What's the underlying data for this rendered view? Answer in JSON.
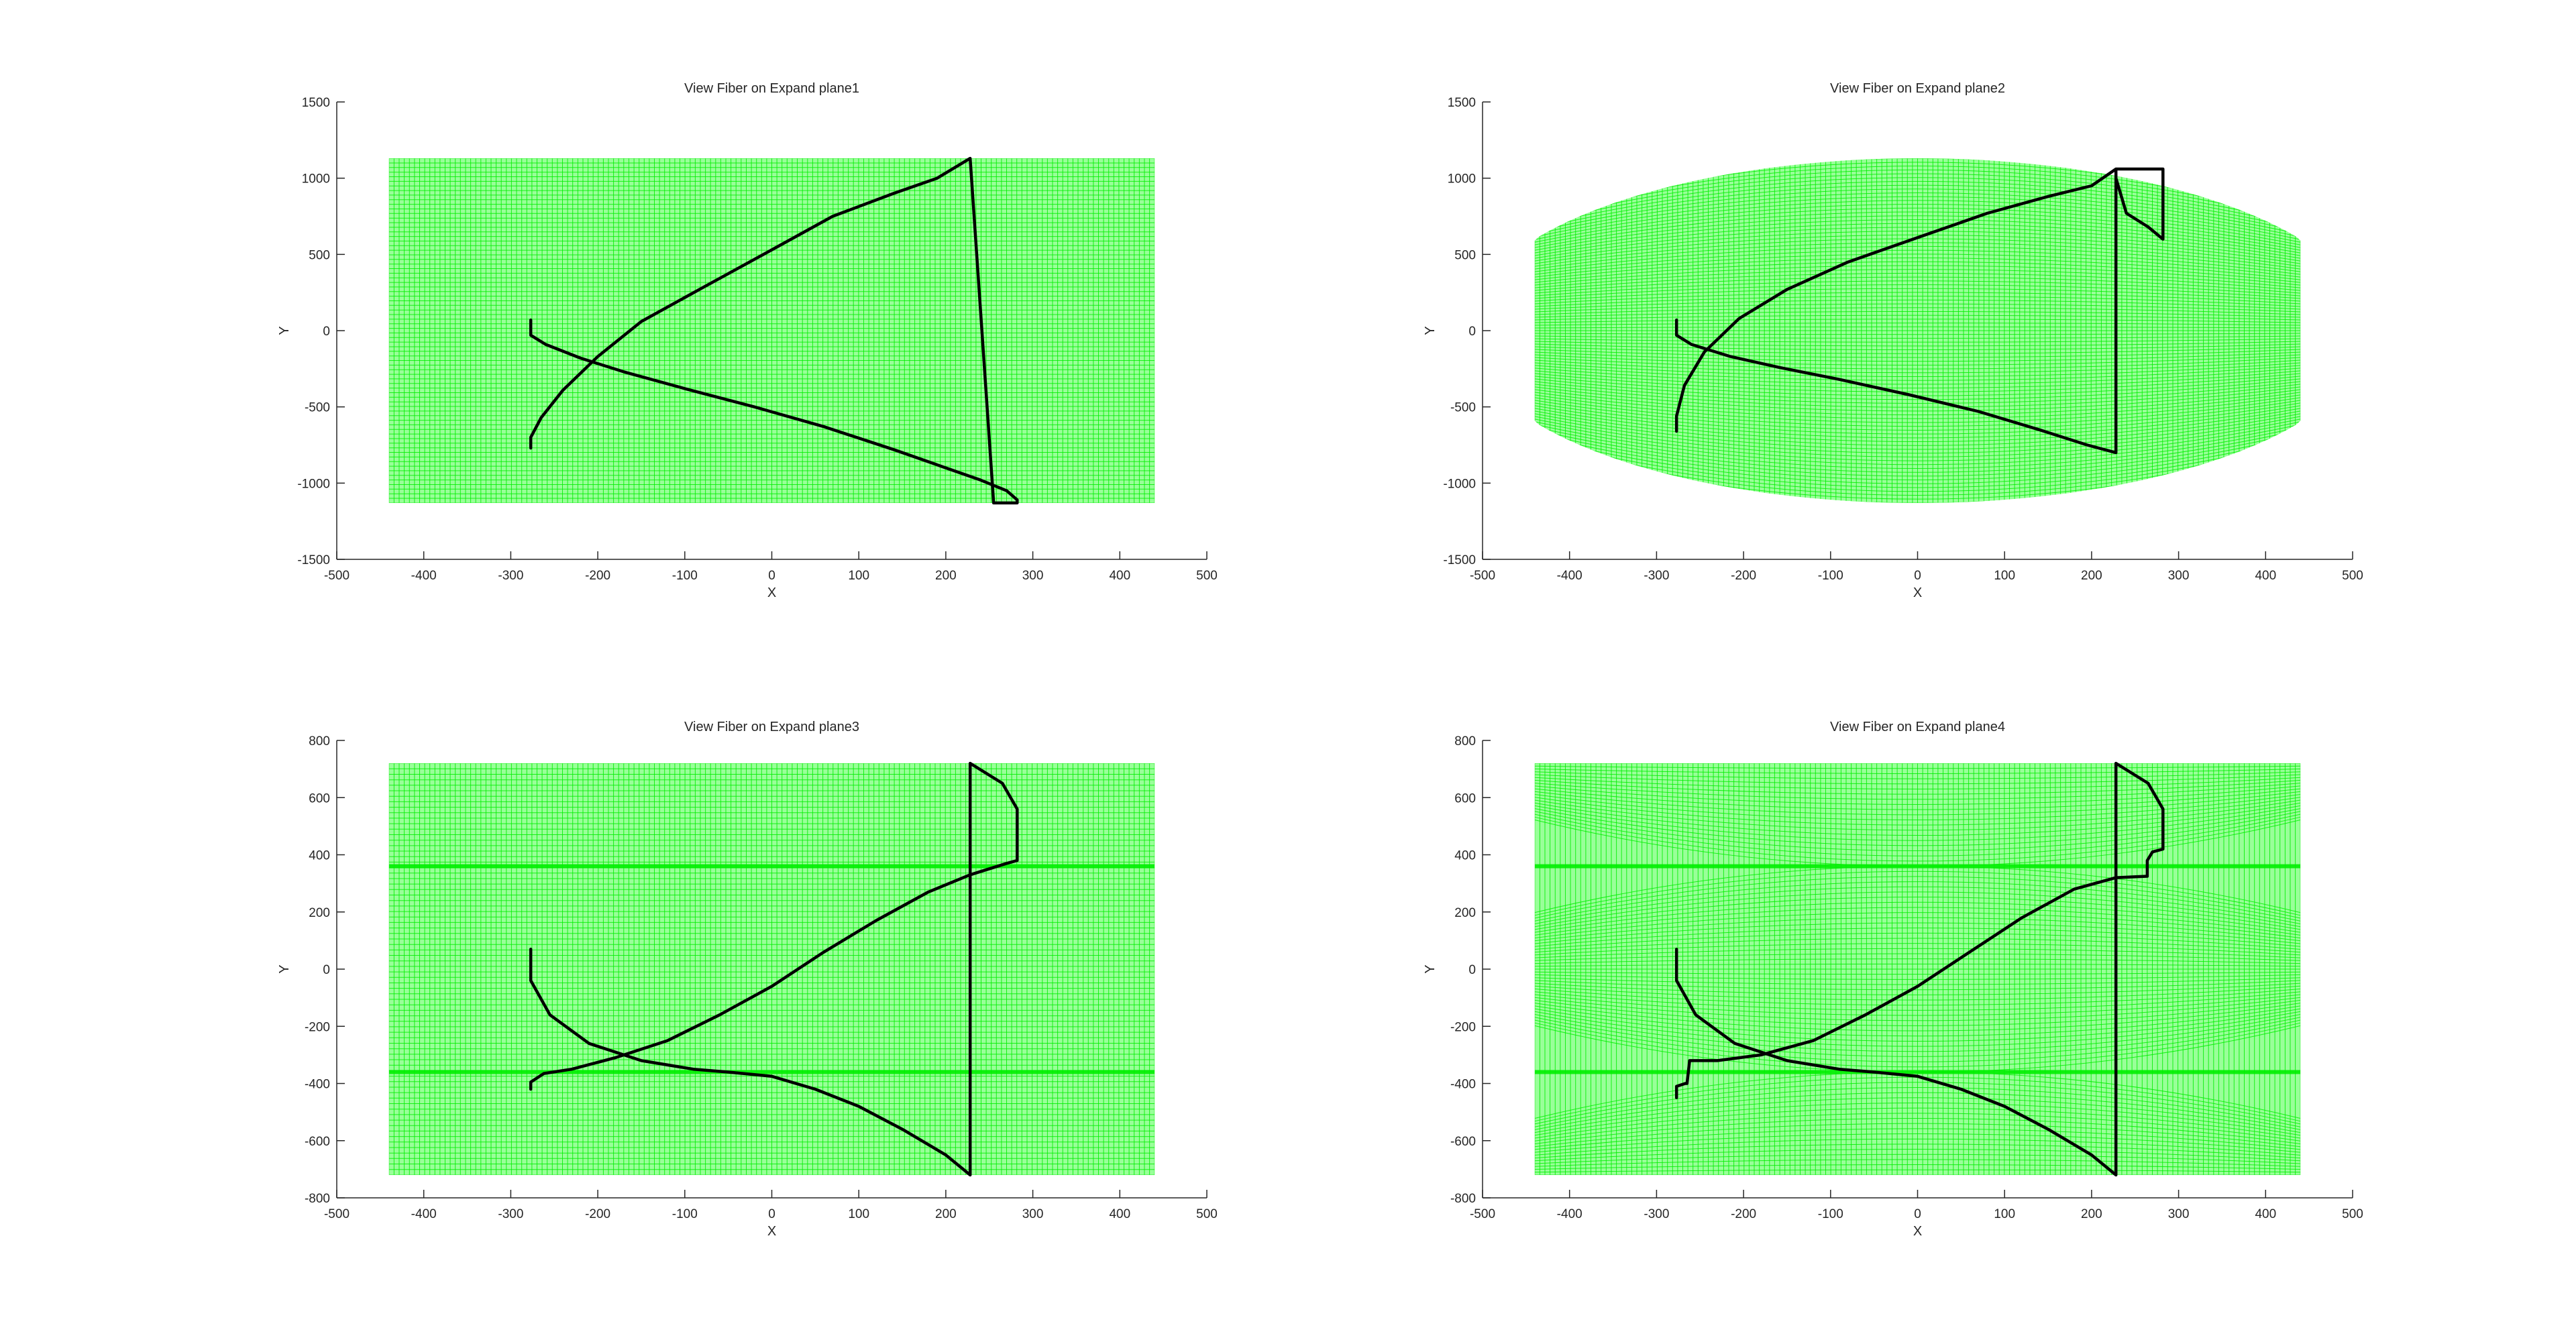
{
  "figure": {
    "grid_color": "#00ee00",
    "grid_fill": "#99ff99",
    "fiber_color": "#000000",
    "axis_color": "#262626"
  },
  "chart_data": [
    {
      "type": "line",
      "title": "View Fiber on Expand plane1",
      "xlabel": "X",
      "ylabel": "Y",
      "xlim": [
        -500,
        500
      ],
      "ylim": [
        -1500,
        1500
      ],
      "xticks": [
        -500,
        -400,
        -300,
        -200,
        -100,
        0,
        100,
        200,
        300,
        400,
        500
      ],
      "yticks": [
        -1500,
        -1000,
        -500,
        0,
        500,
        1000,
        1500
      ],
      "grid": true,
      "mesh": {
        "shape": "rectangle",
        "x_range": [
          -440,
          440
        ],
        "y_range": [
          -1130,
          1130
        ]
      },
      "series": [
        {
          "x": [
            -277,
            -277,
            -260,
            -220,
            -170,
            -100,
            -20,
            60,
            140,
            200,
            240,
            270,
            282,
            282,
            255,
            228,
            228,
            190,
            140,
            70,
            0,
            -80,
            -150,
            -200,
            -240,
            -265,
            -277,
            -277
          ],
          "y": [
            70,
            -30,
            -90,
            -180,
            -270,
            -380,
            -500,
            -630,
            -780,
            -900,
            -980,
            -1050,
            -1110,
            -1130,
            -1130,
            1130,
            1130,
            1000,
            900,
            750,
            530,
            280,
            60,
            -170,
            -390,
            -570,
            -700,
            -770
          ]
        }
      ]
    },
    {
      "type": "line",
      "title": "View Fiber on Expand plane2",
      "xlabel": "X",
      "ylabel": "Y",
      "xlim": [
        -500,
        500
      ],
      "ylim": [
        -1500,
        1500
      ],
      "xticks": [
        -500,
        -400,
        -300,
        -200,
        -100,
        0,
        100,
        200,
        300,
        400,
        500
      ],
      "yticks": [
        -1500,
        -1000,
        -500,
        0,
        500,
        1000,
        1500
      ],
      "grid": true,
      "mesh": {
        "shape": "ellipse",
        "x_range": [
          -440,
          440
        ],
        "y_range": [
          -1130,
          1130
        ],
        "flat_y": 380
      },
      "series": [
        {
          "x": [
            -277,
            -277,
            -260,
            -215,
            -160,
            -90,
            -10,
            70,
            140,
            195,
            228,
            228,
            282,
            282,
            265,
            240,
            228,
            228,
            200,
            150,
            80,
            0,
            -80,
            -150,
            -205,
            -245,
            -268,
            -277,
            -277
          ],
          "y": [
            70,
            -30,
            -90,
            -170,
            -240,
            -320,
            -420,
            -530,
            -650,
            -750,
            -800,
            1060,
            1060,
            600,
            680,
            770,
            1000,
            1060,
            950,
            880,
            770,
            610,
            450,
            270,
            80,
            -140,
            -360,
            -560,
            -660
          ]
        }
      ]
    },
    {
      "type": "line",
      "title": "View Fiber on Expand plane3",
      "xlabel": "X",
      "ylabel": "Y",
      "xlim": [
        -500,
        500
      ],
      "ylim": [
        -800,
        800
      ],
      "xticks": [
        -500,
        -400,
        -300,
        -200,
        -100,
        0,
        100,
        200,
        300,
        400,
        500
      ],
      "yticks": [
        -800,
        -600,
        -400,
        -200,
        0,
        200,
        400,
        600,
        800
      ],
      "grid": true,
      "mesh": {
        "shape": "rectangle",
        "x_range": [
          -440,
          440
        ],
        "y_range": [
          -720,
          720
        ],
        "dense_y": [
          -360,
          360
        ]
      },
      "series": [
        {
          "x": [
            -277,
            -277,
            -255,
            -210,
            -150,
            -90,
            -50,
            0,
            50,
            100,
            150,
            200,
            228,
            228,
            265,
            282,
            282,
            270,
            228,
            180,
            120,
            60,
            0,
            -60,
            -120,
            -180,
            -230,
            -262,
            -277,
            -277
          ],
          "y": [
            70,
            -40,
            -160,
            -260,
            -320,
            -350,
            -360,
            -375,
            -420,
            -480,
            -560,
            -650,
            -720,
            720,
            650,
            560,
            380,
            370,
            330,
            270,
            170,
            60,
            -60,
            -160,
            -250,
            -310,
            -350,
            -365,
            -395,
            -420
          ]
        }
      ]
    },
    {
      "type": "line",
      "title": "View Fiber on Expand plane4",
      "xlabel": "X",
      "ylabel": "Y",
      "xlim": [
        -500,
        500
      ],
      "ylim": [
        -800,
        800
      ],
      "xticks": [
        -500,
        -400,
        -300,
        -200,
        -100,
        0,
        100,
        200,
        300,
        400,
        500
      ],
      "yticks": [
        -800,
        -600,
        -400,
        -200,
        0,
        200,
        400,
        600,
        800
      ],
      "grid": true,
      "mesh": {
        "shape": "stacked-ellipses",
        "x_range": [
          -440,
          440
        ],
        "y_range": [
          -720,
          720
        ],
        "dense_y": [
          -360,
          360
        ]
      },
      "series": [
        {
          "x": [
            -277,
            -277,
            -255,
            -210,
            -150,
            -90,
            -50,
            0,
            50,
            100,
            150,
            200,
            228,
            228,
            265,
            282,
            282,
            270,
            268,
            264,
            264,
            228,
            180,
            120,
            60,
            0,
            -60,
            -120,
            -180,
            -230,
            -262,
            -265,
            -267,
            -277,
            -277
          ],
          "y": [
            70,
            -40,
            -160,
            -260,
            -320,
            -350,
            -360,
            -375,
            -420,
            -480,
            -560,
            -650,
            -720,
            720,
            650,
            560,
            420,
            410,
            400,
            380,
            325,
            320,
            280,
            180,
            60,
            -60,
            -160,
            -250,
            -300,
            -320,
            -320,
            -400,
            -400,
            -410,
            -450
          ]
        }
      ]
    }
  ]
}
